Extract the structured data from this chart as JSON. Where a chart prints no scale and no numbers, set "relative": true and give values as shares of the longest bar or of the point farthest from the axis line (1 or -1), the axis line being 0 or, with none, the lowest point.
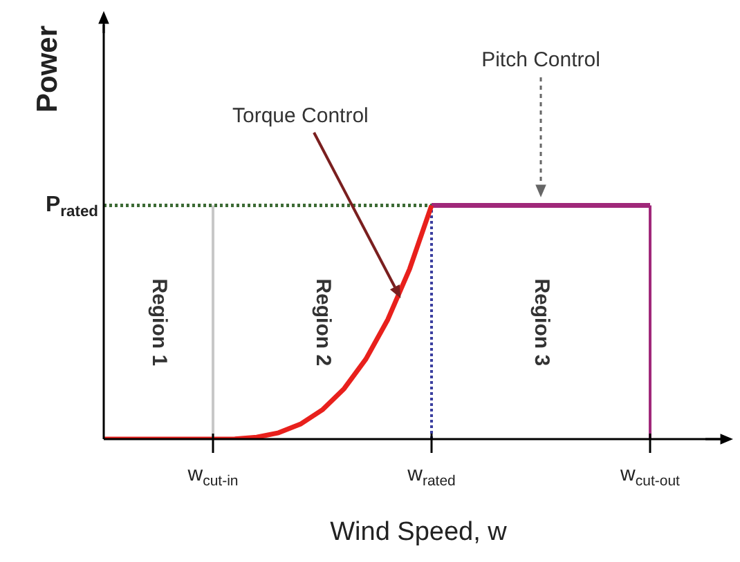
{
  "chart_data": {
    "type": "line",
    "relative": true,
    "xlabel": "Wind Speed, w",
    "ylabel": "Power",
    "categories": [
      null,
      null,
      null,
      null,
      null,
      "w$_{cut-in}$",
      null,
      null,
      null,
      null,
      null,
      null,
      null,
      null,
      null,
      "w$_{rated}$",
      null,
      null,
      null,
      null,
      null,
      null,
      null,
      null,
      null,
      "w$_{cut-out}$"
    ],
    "series": [
      {
        "color": "#e8201c",
        "values": [
          0,
          0,
          0,
          0,
          0,
          0,
          0.001,
          0.008,
          0.027,
          0.064,
          0.125,
          0.216,
          0.343,
          0.512,
          0.729,
          1,
          null,
          null,
          null,
          null,
          null,
          null,
          null,
          null,
          null,
          null
        ]
      },
      {
        "color": "#a0287a",
        "values": [
          null,
          null,
          null,
          null,
          null,
          null,
          null,
          null,
          null,
          null,
          null,
          null,
          null,
          null,
          null,
          1,
          1,
          1,
          1,
          1,
          1,
          1,
          1,
          1,
          1,
          1
        ]
      }
    ],
    "ref_lines": [
      {
        "axis": "y",
        "value": 1,
        "label": "P$_{rated}$",
        "color": "#3d6b35",
        "line_style": "dotted"
      },
      {
        "axis": "x",
        "value": "w$_{cut-in}$",
        "color": "#c8c8c8",
        "line_style": "solid"
      },
      {
        "axis": "x",
        "value": "w$_{rated}$",
        "color": "#3b3fa0",
        "line_style": "dotted"
      },
      {
        "axis": "x",
        "value": "w$_{cut-out}$",
        "color": "#a0287a",
        "line_style": "solid"
      }
    ],
    "annotations": [
      "Region 1",
      "Region 2",
      "Region 3",
      "Torque Control",
      "Pitch Control"
    ],
    "legend": false,
    "grid": false,
    "marker": "none",
    "line_style": "solid"
  }
}
